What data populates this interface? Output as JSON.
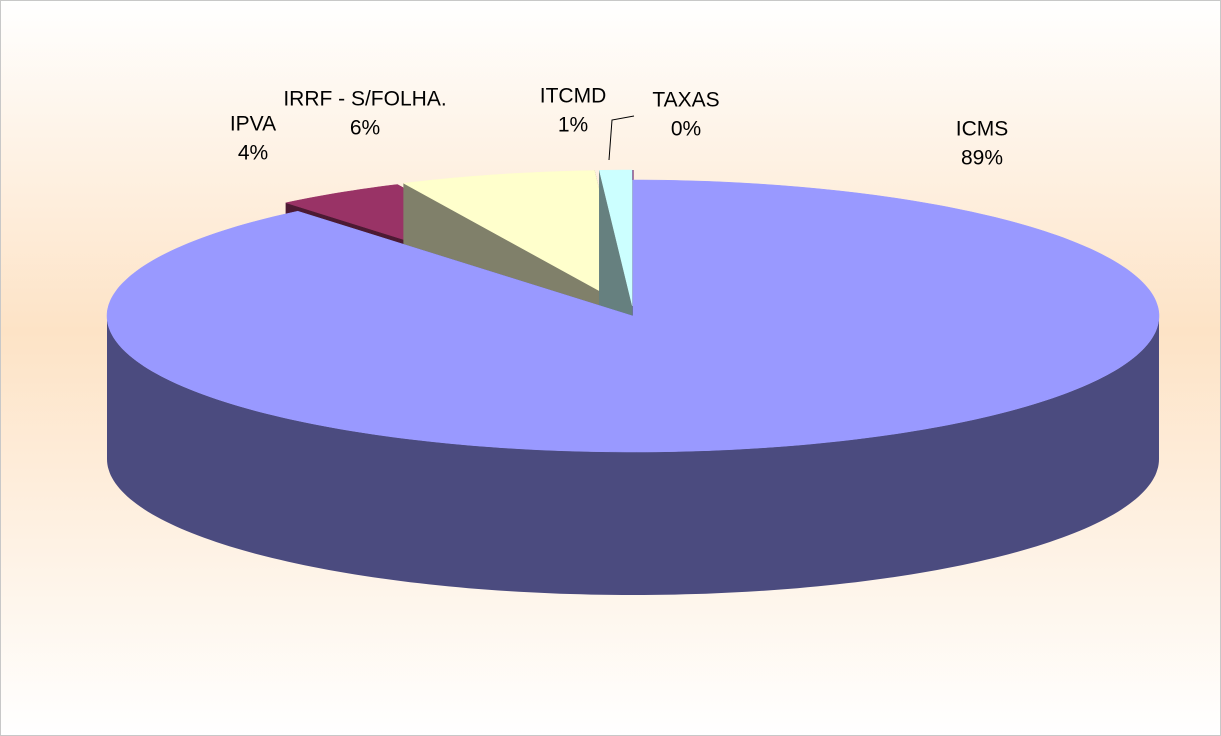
{
  "chart_data": {
    "type": "pie3d",
    "categories": [
      "ICMS",
      "IPVA",
      "IRRF - S/FOLHA.",
      "ITCMD",
      "TAXAS"
    ],
    "values": [
      89,
      4,
      6,
      1,
      0
    ],
    "value_labels": [
      "89%",
      "4%",
      "6%",
      "1%",
      "0%"
    ],
    "colors": [
      "#9999ff",
      "#993366",
      "#ffffcc",
      "#ccffff",
      "#660066"
    ],
    "side_colors": [
      "#4b4b7f",
      "#4c1a33",
      "#80806a",
      "#66807f",
      "#330033"
    ]
  }
}
